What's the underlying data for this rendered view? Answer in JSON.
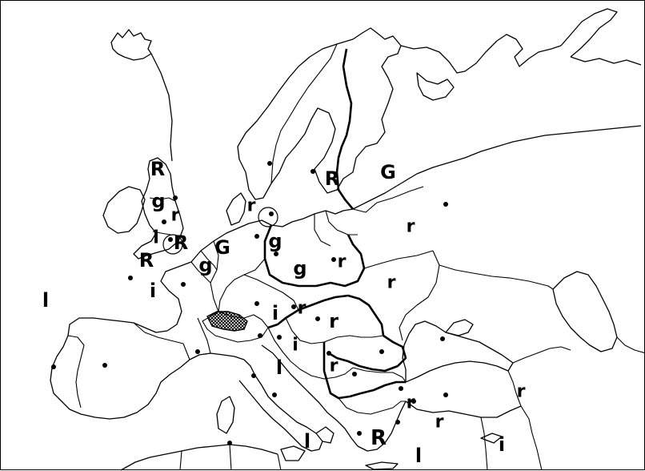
{
  "map": {
    "labels": [
      {
        "id": "l01",
        "text": "R"
      },
      {
        "id": "l02",
        "text": "g"
      },
      {
        "id": "l03",
        "text": "r"
      },
      {
        "id": "l04",
        "text": "l"
      },
      {
        "id": "l05",
        "text": "R"
      },
      {
        "id": "l06",
        "text": "G"
      },
      {
        "id": "l07",
        "text": "R"
      },
      {
        "id": "l08",
        "text": "g"
      },
      {
        "id": "l09",
        "text": "i"
      },
      {
        "id": "l10",
        "text": "l"
      },
      {
        "id": "l11",
        "text": "R"
      },
      {
        "id": "l12",
        "text": "G"
      },
      {
        "id": "l13",
        "text": "r"
      },
      {
        "id": "l14",
        "text": "r"
      },
      {
        "id": "l15",
        "text": "g"
      },
      {
        "id": "l16",
        "text": "g"
      },
      {
        "id": "l17",
        "text": "r"
      },
      {
        "id": "l18",
        "text": "r"
      },
      {
        "id": "l19",
        "text": "i"
      },
      {
        "id": "l20",
        "text": "r"
      },
      {
        "id": "l21",
        "text": "r"
      },
      {
        "id": "l22",
        "text": "i"
      },
      {
        "id": "l23",
        "text": "l"
      },
      {
        "id": "l24",
        "text": "r"
      },
      {
        "id": "l25",
        "text": "r"
      },
      {
        "id": "l26",
        "text": "r"
      },
      {
        "id": "l27",
        "text": "r"
      },
      {
        "id": "l28",
        "text": "l"
      },
      {
        "id": "l29",
        "text": "R"
      },
      {
        "id": "l30",
        "text": "l"
      },
      {
        "id": "l31",
        "text": "i"
      }
    ]
  }
}
